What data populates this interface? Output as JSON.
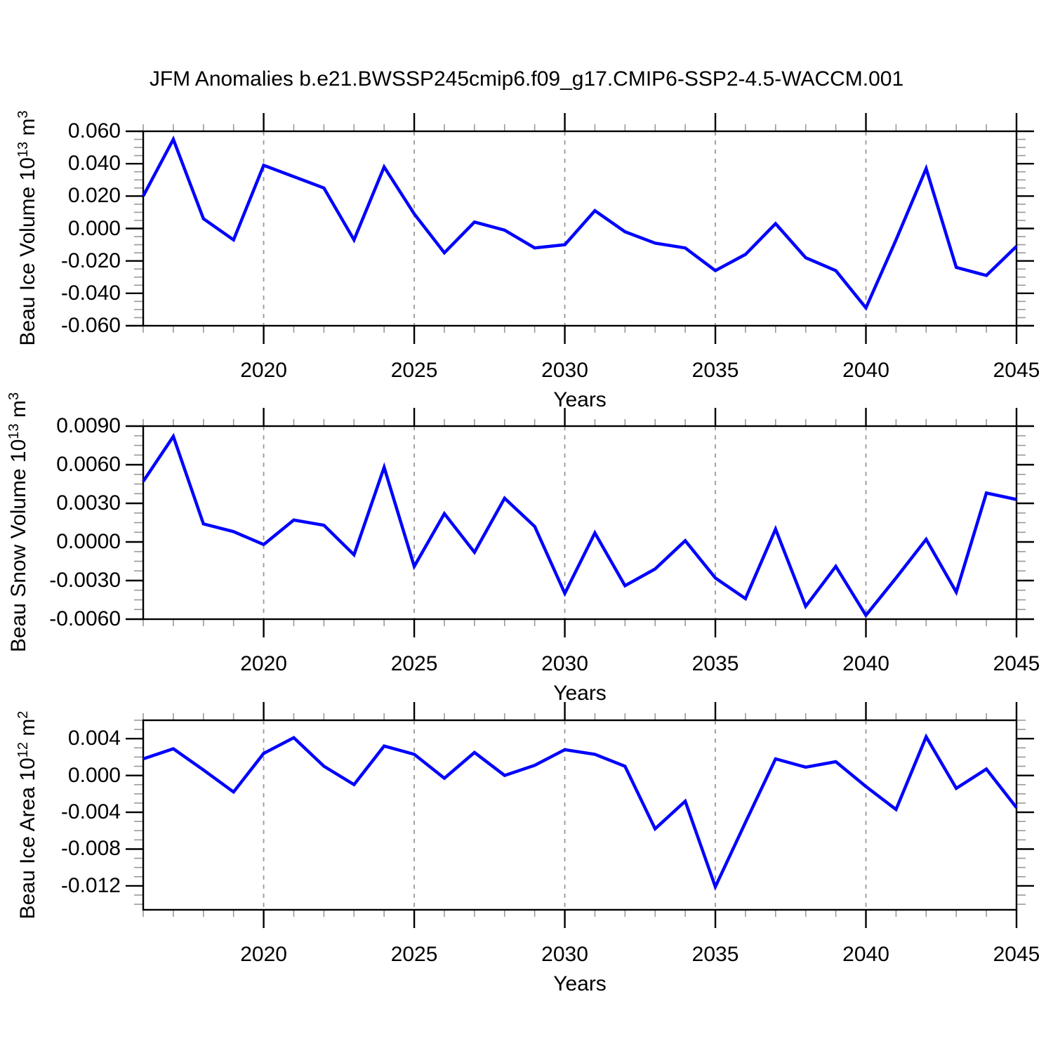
{
  "figure": {
    "title": "JFM Anomalies b.e21.BWSSP245cmip6.f09_g17.CMIP6-SSP2-4.5-WACCM.001",
    "background": "#ffffff",
    "line_color": "#0000ff",
    "frame_color": "#000000",
    "grid_color": "#999999",
    "major_tick_color": "#000000",
    "minor_tick_color": "#999999"
  },
  "xlabel": "Years",
  "chart_data": [
    {
      "type": "line",
      "name": "beau-ice-volume",
      "ylabel": {
        "prefix": "Beau Ice Volume 10",
        "exp": "13",
        "unit": " m",
        "unit_exp": "3"
      },
      "x": [
        2016,
        2017,
        2018,
        2019,
        2020,
        2021,
        2022,
        2023,
        2024,
        2025,
        2026,
        2027,
        2028,
        2029,
        2030,
        2031,
        2032,
        2033,
        2034,
        2035,
        2036,
        2037,
        2038,
        2039,
        2040,
        2041,
        2042,
        2043,
        2044,
        2045
      ],
      "values": [
        0.02,
        0.055,
        0.006,
        -0.007,
        0.039,
        0.032,
        0.025,
        -0.007,
        0.038,
        0.009,
        -0.015,
        0.004,
        -0.001,
        -0.012,
        -0.01,
        0.011,
        -0.002,
        -0.009,
        -0.012,
        -0.026,
        -0.016,
        0.003,
        -0.018,
        -0.026,
        -0.049,
        -0.007,
        0.037,
        -0.024,
        -0.029,
        -0.011
      ],
      "xlim": [
        2016,
        2045
      ],
      "ylim": [
        -0.06,
        0.06
      ],
      "yticks": [
        {
          "label": "0.060",
          "value": 0.06
        },
        {
          "label": "0.040",
          "value": 0.04
        },
        {
          "label": "0.020",
          "value": 0.02
        },
        {
          "label": "0.000",
          "value": 0.0
        },
        {
          "label": "-0.020",
          "value": -0.02
        },
        {
          "label": "-0.040",
          "value": -0.04
        },
        {
          "label": "-0.060",
          "value": -0.06
        }
      ],
      "y_minor_step": 0.005,
      "xticks": [
        {
          "label": "2020",
          "value": 2020
        },
        {
          "label": "2025",
          "value": 2025
        },
        {
          "label": "2030",
          "value": 2030
        },
        {
          "label": "2035",
          "value": 2035
        },
        {
          "label": "2040",
          "value": 2040
        },
        {
          "label": "2045",
          "value": 2045
        }
      ],
      "x_minor_step": 1,
      "grid_years": [
        2020,
        2025,
        2030,
        2035,
        2040
      ],
      "grid_style": "dashed-vertical",
      "legend": "none"
    },
    {
      "type": "line",
      "name": "beau-snow-volume",
      "ylabel": {
        "prefix": "Beau Snow Volume 10",
        "exp": "13",
        "unit": " m",
        "unit_exp": "3"
      },
      "x": [
        2016,
        2017,
        2018,
        2019,
        2020,
        2021,
        2022,
        2023,
        2024,
        2025,
        2026,
        2027,
        2028,
        2029,
        2030,
        2031,
        2032,
        2033,
        2034,
        2035,
        2036,
        2037,
        2038,
        2039,
        2040,
        2041,
        2042,
        2043,
        2044,
        2045
      ],
      "values": [
        0.0047,
        0.0082,
        0.0014,
        0.0008,
        -0.0002,
        0.0017,
        0.0013,
        -0.001,
        0.0058,
        -0.0019,
        0.0022,
        -0.0008,
        0.0034,
        0.0012,
        -0.004,
        0.0007,
        -0.0034,
        -0.0021,
        0.0001,
        -0.0028,
        -0.0044,
        0.001,
        -0.005,
        -0.0019,
        -0.0057,
        -0.0028,
        0.0002,
        -0.0039,
        0.0038,
        0.0033
      ],
      "xlim": [
        2016,
        2045
      ],
      "ylim": [
        -0.006,
        0.009
      ],
      "yticks": [
        {
          "label": "0.0090",
          "value": 0.009
        },
        {
          "label": "0.0060",
          "value": 0.006
        },
        {
          "label": "0.0030",
          "value": 0.003
        },
        {
          "label": "0.0000",
          "value": 0.0
        },
        {
          "label": "-0.0030",
          "value": -0.003
        },
        {
          "label": "-0.0060",
          "value": -0.006
        }
      ],
      "y_minor_step": 0.00075,
      "xticks": [
        {
          "label": "2020",
          "value": 2020
        },
        {
          "label": "2025",
          "value": 2025
        },
        {
          "label": "2030",
          "value": 2030
        },
        {
          "label": "2035",
          "value": 2035
        },
        {
          "label": "2040",
          "value": 2040
        },
        {
          "label": "2045",
          "value": 2045
        }
      ],
      "x_minor_step": 1,
      "grid_years": [
        2020,
        2025,
        2030,
        2035,
        2040
      ],
      "grid_style": "dashed-vertical",
      "legend": "none"
    },
    {
      "type": "line",
      "name": "beau-ice-area",
      "ylabel": {
        "prefix": "Beau Ice Area 10",
        "exp": "12",
        "unit": " m",
        "unit_exp": "2"
      },
      "x": [
        2016,
        2017,
        2018,
        2019,
        2020,
        2021,
        2022,
        2023,
        2024,
        2025,
        2026,
        2027,
        2028,
        2029,
        2030,
        2031,
        2032,
        2033,
        2034,
        2035,
        2036,
        2037,
        2038,
        2039,
        2040,
        2041,
        2042,
        2043,
        2044,
        2045
      ],
      "values": [
        0.0018,
        0.0029,
        0.0006,
        -0.0018,
        0.0024,
        0.0041,
        0.001,
        -0.001,
        0.0032,
        0.0023,
        -0.0003,
        0.0025,
        0.0,
        0.0011,
        0.0028,
        0.0023,
        0.001,
        -0.0058,
        -0.0028,
        -0.0121,
        -0.0051,
        0.0018,
        0.0009,
        0.0015,
        -0.0012,
        -0.0037,
        0.0042,
        -0.0014,
        0.0007,
        -0.0035
      ],
      "xlim": [
        2016,
        2045
      ],
      "ylim": [
        -0.0146,
        0.006
      ],
      "yticks": [
        {
          "label": "0.004",
          "value": 0.004
        },
        {
          "label": "0.000",
          "value": 0.0
        },
        {
          "label": "-0.004",
          "value": -0.004
        },
        {
          "label": "-0.008",
          "value": -0.008
        },
        {
          "label": "-0.012",
          "value": -0.012
        }
      ],
      "y_minor_step": 0.001,
      "xticks": [
        {
          "label": "2020",
          "value": 2020
        },
        {
          "label": "2025",
          "value": 2025
        },
        {
          "label": "2030",
          "value": 2030
        },
        {
          "label": "2035",
          "value": 2035
        },
        {
          "label": "2040",
          "value": 2040
        },
        {
          "label": "2045",
          "value": 2045
        }
      ],
      "x_minor_step": 1,
      "grid_years": [
        2020,
        2025,
        2030,
        2035,
        2040
      ],
      "grid_style": "dashed-vertical",
      "legend": "none"
    }
  ]
}
